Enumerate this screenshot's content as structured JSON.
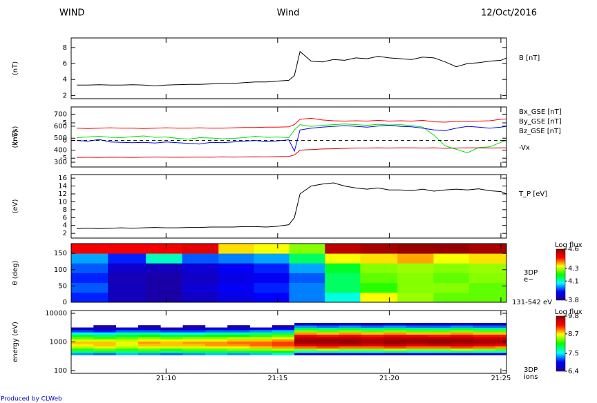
{
  "header": {
    "left": "WIND",
    "center": "Wind",
    "right": "12/Oct/2016"
  },
  "footer": "Produced by CLWeb",
  "time_axis": {
    "xlim": [
      "21:05:45",
      "21:25:15"
    ],
    "xticks": [
      {
        "value": "21:10:00",
        "label": "21:10"
      },
      {
        "value": "21:15:00",
        "label": "21:15"
      },
      {
        "value": "21:20:00",
        "label": "21:20"
      },
      {
        "value": "21:25:00",
        "label": "21:25"
      }
    ]
  },
  "chart_data": [
    {
      "type": "line",
      "ylabel": "(nT)",
      "ylim": [
        1.6,
        9.2
      ],
      "yticks": [
        2,
        4,
        6,
        8
      ],
      "x": [
        "21:06:00",
        "21:06:30",
        "21:07:00",
        "21:07:30",
        "21:08:00",
        "21:08:30",
        "21:09:00",
        "21:09:30",
        "21:10:00",
        "21:10:30",
        "21:11:00",
        "21:11:30",
        "21:12:00",
        "21:12:30",
        "21:13:00",
        "21:13:30",
        "21:14:00",
        "21:14:30",
        "21:15:00",
        "21:15:30",
        "21:15:45",
        "21:16:00",
        "21:16:30",
        "21:17:00",
        "21:17:30",
        "21:18:00",
        "21:18:30",
        "21:19:00",
        "21:19:30",
        "21:20:00",
        "21:20:30",
        "21:21:00",
        "21:21:30",
        "21:22:00",
        "21:22:30",
        "21:23:00",
        "21:23:30",
        "21:24:00",
        "21:24:30",
        "21:25:00",
        "21:25:15"
      ],
      "series": [
        {
          "name": "B [nT]",
          "color": "#000000",
          "values": [
            3.3,
            3.3,
            3.35,
            3.3,
            3.3,
            3.35,
            3.3,
            3.2,
            3.3,
            3.35,
            3.4,
            3.4,
            3.45,
            3.5,
            3.5,
            3.6,
            3.7,
            3.7,
            3.8,
            3.9,
            4.5,
            7.5,
            6.3,
            6.2,
            6.5,
            6.4,
            6.7,
            6.6,
            6.9,
            6.7,
            6.6,
            6.5,
            6.8,
            6.7,
            6.2,
            5.6,
            6.0,
            6.1,
            6.3,
            6.4,
            6.7
          ]
        }
      ]
    },
    {
      "type": "line",
      "ylabel": "(nT)",
      "y2label": "(km/s)",
      "ylim": [
        -7.5,
        9.5
      ],
      "yticks": [
        -5,
        0,
        5
      ],
      "zero_line": true,
      "y2lim": [
        260,
        760
      ],
      "y2ticks": [
        300,
        400,
        500,
        600,
        700
      ],
      "x": [
        "21:06:00",
        "21:06:30",
        "21:07:00",
        "21:07:30",
        "21:08:00",
        "21:08:30",
        "21:09:00",
        "21:09:30",
        "21:10:00",
        "21:10:30",
        "21:11:00",
        "21:11:30",
        "21:12:00",
        "21:12:30",
        "21:13:00",
        "21:13:30",
        "21:14:00",
        "21:14:30",
        "21:15:00",
        "21:15:30",
        "21:15:45",
        "21:16:00",
        "21:16:30",
        "21:17:00",
        "21:17:30",
        "21:18:00",
        "21:18:30",
        "21:19:00",
        "21:19:30",
        "21:20:00",
        "21:20:30",
        "21:21:00",
        "21:21:30",
        "21:22:00",
        "21:22:30",
        "21:23:00",
        "21:23:30",
        "21:24:00",
        "21:24:30",
        "21:25:00",
        "21:25:15"
      ],
      "series": [
        {
          "name": "Bx_GSE [nT]",
          "color": "#ff0000",
          "values": [
            3.5,
            3.4,
            3.5,
            3.6,
            3.5,
            3.5,
            3.4,
            3.5,
            3.6,
            3.5,
            3.5,
            3.6,
            3.5,
            3.5,
            3.6,
            3.7,
            3.7,
            3.8,
            3.8,
            3.9,
            4.5,
            6.0,
            6.3,
            5.8,
            5.6,
            5.5,
            5.6,
            5.5,
            5.7,
            5.5,
            5.6,
            5.5,
            5.7,
            5.3,
            5.2,
            5.4,
            5.4,
            5.5,
            5.6,
            6.0,
            6.1
          ]
        },
        {
          "name": "By_GSE [nT]",
          "color": "#00e000",
          "values": [
            0.8,
            1.0,
            1.2,
            0.9,
            0.8,
            1.1,
            1.3,
            0.9,
            1.0,
            0.6,
            0.4,
            0.8,
            0.7,
            0.5,
            0.6,
            0.8,
            1.2,
            0.9,
            1.0,
            0.8,
            3.0,
            4.5,
            4.0,
            4.3,
            4.5,
            4.7,
            4.5,
            4.3,
            4.6,
            4.4,
            4.5,
            4.2,
            3.8,
            1.5,
            -1.5,
            -2.5,
            -3.5,
            -2.0,
            -1.8,
            -0.5,
            0.0
          ]
        },
        {
          "name": "Bz_GSE [nT]",
          "color": "#0000ff",
          "values": [
            0.0,
            -0.2,
            0.3,
            -0.4,
            -0.5,
            -0.6,
            -0.5,
            -0.7,
            -0.4,
            -0.6,
            -0.8,
            -1.0,
            -0.5,
            -0.6,
            -0.4,
            -0.2,
            0.0,
            -0.3,
            -0.1,
            0.2,
            -3.0,
            3.0,
            3.5,
            3.8,
            4.0,
            4.2,
            4.0,
            3.8,
            4.1,
            4.3,
            4.0,
            3.9,
            3.5,
            3.0,
            2.8,
            3.5,
            4.0,
            3.8,
            3.5,
            3.8,
            4.0
          ]
        },
        {
          "name": "-Vx",
          "color": "#cc0000",
          "axis": "y2",
          "values": [
            340,
            341,
            340,
            342,
            341,
            340,
            342,
            343,
            342,
            341,
            342,
            343,
            342,
            344,
            343,
            344,
            345,
            344,
            346,
            348,
            360,
            400,
            405,
            410,
            412,
            415,
            418,
            418,
            420,
            418,
            420,
            420,
            418,
            420,
            416,
            418,
            420,
            420,
            418,
            420,
            420
          ]
        }
      ]
    },
    {
      "type": "line",
      "ylabel": "(eV)",
      "ylim": [
        0.8,
        16.9
      ],
      "yticks": [
        2,
        4,
        6,
        8,
        10,
        12,
        14,
        16
      ],
      "x": [
        "21:06:00",
        "21:06:30",
        "21:07:00",
        "21:07:30",
        "21:08:00",
        "21:08:30",
        "21:09:00",
        "21:09:30",
        "21:10:00",
        "21:10:30",
        "21:11:00",
        "21:11:30",
        "21:12:00",
        "21:12:30",
        "21:13:00",
        "21:13:30",
        "21:14:00",
        "21:14:30",
        "21:15:00",
        "21:15:30",
        "21:15:45",
        "21:16:00",
        "21:16:30",
        "21:17:00",
        "21:17:30",
        "21:18:00",
        "21:18:30",
        "21:19:00",
        "21:19:30",
        "21:20:00",
        "21:20:30",
        "21:21:00",
        "21:21:30",
        "21:22:00",
        "21:22:30",
        "21:23:00",
        "21:23:30",
        "21:24:00",
        "21:24:30",
        "21:25:00",
        "21:25:15"
      ],
      "series": [
        {
          "name": "T_P [eV]",
          "color": "#000000",
          "values": [
            3.2,
            3.3,
            3.2,
            3.3,
            3.4,
            3.3,
            3.4,
            3.5,
            3.4,
            3.4,
            3.5,
            3.5,
            3.6,
            3.6,
            3.6,
            3.7,
            3.7,
            3.6,
            3.8,
            4.2,
            6.0,
            12.0,
            14.0,
            14.5,
            14.8,
            14.0,
            13.5,
            13.2,
            13.5,
            13.0,
            13.0,
            12.8,
            13.2,
            12.7,
            13.0,
            13.2,
            13.0,
            13.3,
            12.8,
            12.6,
            12.0
          ]
        }
      ]
    },
    {
      "type": "heatmap",
      "ylabel": "θ (deg)",
      "ylim": [
        0,
        180
      ],
      "yticks": [
        0,
        50,
        100,
        150
      ],
      "instrument": "3DP",
      "species": "e−",
      "energy_range": "131-542 eV",
      "colorbar_label": "Log flux",
      "zlim": [
        3.8,
        4.6
      ],
      "zticks": [
        3.8,
        4.1,
        4.3,
        4.6
      ],
      "colorscale": [
        "#1e0096",
        "#0000ff",
        "#00ffff",
        "#00ff00",
        "#ffff00",
        "#ff0000",
        "#960000"
      ],
      "x_bins": [
        "21:05:45",
        "21:07:24",
        "21:09:06",
        "21:10:43",
        "21:12:21",
        "21:13:56",
        "21:15:31",
        "21:17:07",
        "21:18:42",
        "21:20:22",
        "21:21:59",
        "21:23:34",
        "21:25:15"
      ],
      "y_bins": [
        0,
        30,
        60,
        90,
        120,
        150,
        180
      ],
      "z": [
        [
          3.95,
          3.98,
          3.95,
          3.98,
          4.02,
          4.48
        ],
        [
          3.85,
          3.85,
          3.84,
          3.87,
          3.95,
          4.48
        ],
        [
          3.82,
          3.82,
          3.82,
          3.85,
          4.1,
          4.48
        ],
        [
          3.86,
          3.88,
          3.86,
          3.88,
          3.98,
          4.5
        ],
        [
          3.9,
          3.92,
          3.9,
          3.92,
          4.0,
          4.35
        ],
        [
          3.93,
          3.95,
          3.92,
          3.95,
          4.02,
          4.33
        ],
        [
          4.0,
          4.0,
          3.98,
          4.02,
          4.15,
          4.27
        ],
        [
          4.08,
          4.15,
          4.15,
          4.18,
          4.33,
          4.55
        ],
        [
          4.33,
          4.22,
          4.25,
          4.27,
          4.35,
          4.58
        ],
        [
          4.28,
          4.27,
          4.27,
          4.28,
          4.38,
          4.6
        ],
        [
          4.25,
          4.27,
          4.25,
          4.27,
          4.33,
          4.6
        ],
        [
          4.25,
          4.25,
          4.27,
          4.28,
          4.35,
          4.58
        ]
      ]
    },
    {
      "type": "heatmap",
      "ylabel": "energy (eV)",
      "yscale": "log",
      "ylim": [
        80,
        12500
      ],
      "yticks": [
        100,
        1000,
        10000
      ],
      "instrument": "3DP",
      "species": "ions",
      "colorbar_label": "Log flux",
      "zlim": [
        6.4,
        9.8
      ],
      "zticks": [
        6.4,
        7.5,
        8.7,
        9.8
      ],
      "colorscale": [
        "#1e0096",
        "#0000ff",
        "#00ffff",
        "#00ff00",
        "#ffff00",
        "#ff0000",
        "#960000"
      ],
      "x_bins": [
        "21:05:45",
        "21:06:45",
        "21:07:45",
        "21:08:45",
        "21:09:45",
        "21:10:45",
        "21:11:45",
        "21:12:45",
        "21:13:45",
        "21:14:45",
        "21:15:45",
        "21:16:45",
        "21:17:45",
        "21:18:45",
        "21:19:45",
        "21:20:45",
        "21:21:45",
        "21:22:45",
        "21:23:45",
        "21:24:45",
        "21:25:15"
      ],
      "y_bins": [
        350,
        420,
        500,
        600,
        720,
        870,
        1050,
        1260,
        1520,
        1830,
        2200,
        2650,
        3200,
        3850,
        4600
      ],
      "z": [
        [
          7.3,
          7.8,
          8.2,
          8.5,
          8.7,
          8.8,
          8.6,
          8.3,
          8.0,
          7.6,
          7.1,
          6.7,
          null,
          null
        ],
        [
          7.2,
          7.9,
          8.3,
          8.6,
          8.8,
          8.8,
          8.6,
          8.2,
          7.9,
          7.5,
          7.0,
          6.6,
          6.5,
          null
        ],
        [
          7.4,
          7.8,
          8.2,
          8.5,
          8.6,
          8.7,
          8.5,
          8.3,
          8.0,
          7.7,
          7.2,
          6.8,
          null,
          null
        ],
        [
          7.3,
          7.9,
          8.3,
          8.6,
          8.8,
          8.9,
          8.7,
          8.4,
          8.1,
          7.7,
          7.2,
          6.7,
          6.5,
          null
        ],
        [
          7.2,
          7.8,
          8.2,
          8.6,
          8.8,
          8.8,
          8.7,
          8.3,
          8.0,
          7.6,
          7.1,
          6.6,
          null,
          null
        ],
        [
          7.3,
          7.9,
          8.3,
          8.6,
          8.8,
          8.9,
          8.7,
          8.4,
          8.0,
          7.6,
          7.1,
          6.7,
          6.5,
          null
        ],
        [
          7.4,
          7.9,
          8.3,
          8.7,
          8.9,
          8.9,
          8.7,
          8.4,
          8.1,
          7.7,
          7.2,
          6.8,
          null,
          null
        ],
        [
          7.3,
          7.9,
          8.4,
          8.7,
          8.9,
          9.0,
          8.8,
          8.5,
          8.1,
          7.7,
          7.2,
          6.7,
          6.5,
          null
        ],
        [
          7.4,
          8.0,
          8.4,
          8.8,
          9.0,
          9.0,
          8.8,
          8.5,
          8.2,
          7.8,
          7.3,
          6.8,
          null,
          null
        ],
        [
          7.5,
          8.1,
          8.5,
          8.9,
          9.1,
          9.1,
          8.9,
          8.6,
          8.3,
          7.9,
          7.4,
          6.9,
          6.5,
          null
        ],
        [
          6.6,
          7.6,
          8.4,
          9.0,
          9.4,
          9.7,
          9.8,
          9.6,
          9.3,
          8.9,
          8.4,
          7.9,
          7.3,
          6.7
        ],
        [
          6.7,
          7.7,
          8.5,
          9.1,
          9.5,
          9.7,
          9.8,
          9.6,
          9.2,
          8.8,
          8.3,
          7.8,
          7.2,
          6.6
        ],
        [
          6.6,
          7.6,
          8.4,
          9.0,
          9.5,
          9.8,
          9.8,
          9.6,
          9.3,
          8.9,
          8.4,
          7.9,
          7.3,
          6.7
        ],
        [
          6.7,
          7.6,
          8.4,
          9.0,
          9.4,
          9.7,
          9.7,
          9.5,
          9.2,
          8.8,
          8.3,
          7.8,
          7.2,
          6.6
        ],
        [
          6.6,
          7.7,
          8.5,
          9.1,
          9.5,
          9.8,
          9.8,
          9.6,
          9.3,
          8.9,
          8.4,
          7.9,
          7.3,
          6.7
        ],
        [
          6.7,
          7.6,
          8.4,
          9.0,
          9.4,
          9.7,
          9.8,
          9.6,
          9.3,
          8.8,
          8.3,
          7.8,
          7.2,
          6.6
        ],
        [
          6.6,
          7.6,
          8.4,
          9.0,
          9.5,
          9.8,
          9.8,
          9.6,
          9.2,
          8.8,
          8.3,
          7.8,
          7.2,
          6.7
        ],
        [
          6.7,
          7.7,
          8.5,
          9.1,
          9.5,
          9.7,
          9.8,
          9.6,
          9.3,
          8.9,
          8.4,
          7.9,
          7.3,
          6.7
        ],
        [
          6.6,
          7.6,
          8.4,
          9.0,
          9.4,
          9.7,
          9.7,
          9.5,
          9.2,
          8.8,
          8.3,
          7.8,
          7.2,
          6.6
        ],
        [
          6.6,
          7.6,
          8.3,
          8.9,
          9.3,
          9.6,
          9.7,
          9.5,
          9.2,
          8.8,
          8.3,
          7.8,
          7.2,
          6.6
        ]
      ]
    }
  ]
}
